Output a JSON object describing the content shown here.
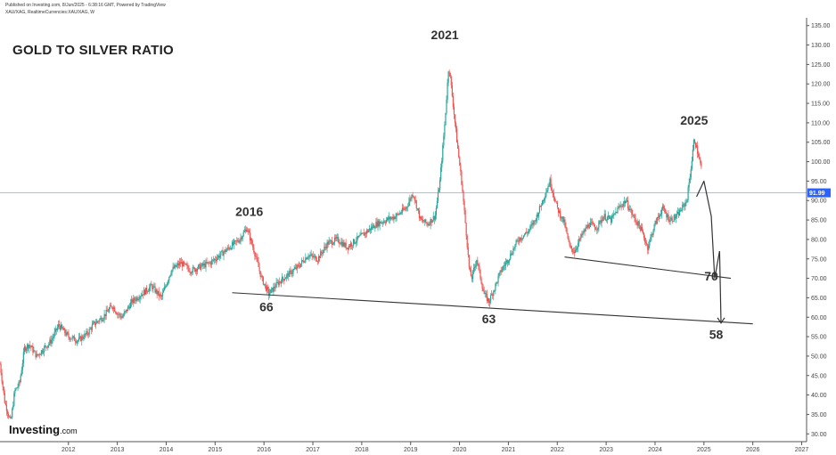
{
  "header": {
    "line1": "Published on Investing.com, 8/Jun/2025 - 6:38:16 GMT, Powered by TradingView",
    "line2": "XAU/XAG, RealtimeCurrencies:XAU/XAG, W"
  },
  "logo": {
    "main": "Investing",
    "suffix": ".com"
  },
  "colors": {
    "up": "#26a69a",
    "down": "#ef5350",
    "price_line": "#b0b6be",
    "price_tag": "#2962ff",
    "trendline": "#333333"
  },
  "chart_data": {
    "type": "line",
    "title": "GOLD TO SILVER RATIO",
    "xlabel": "",
    "ylabel": "",
    "ylim": [
      28,
      137
    ],
    "xlim": [
      2011.1,
      2027.6
    ],
    "x_ticks": [
      "2012",
      "2013",
      "2014",
      "2015",
      "2016",
      "2017",
      "2018",
      "2019",
      "2020",
      "2021",
      "2022",
      "2023",
      "2024",
      "2025",
      "2026",
      "2027"
    ],
    "y_ticks": [
      "30.00",
      "35.00",
      "40.00",
      "45.00",
      "50.00",
      "55.00",
      "60.00",
      "65.00",
      "70.00",
      "75.00",
      "80.00",
      "85.00",
      "90.00",
      "95.00",
      "100.00",
      "105.00",
      "110.00",
      "115.00",
      "120.00",
      "125.00",
      "130.00",
      "135.00"
    ],
    "current_price": "91.99",
    "series": [
      {
        "x": [
          2011.1,
          2011.2,
          2011.32,
          2011.4,
          2011.5,
          2011.6,
          2011.7,
          2011.85,
          2012.0,
          2012.15,
          2012.3,
          2012.5,
          2012.7,
          2012.9,
          2013.0,
          2013.2,
          2013.4,
          2013.5,
          2013.6,
          2013.8,
          2014.0,
          2014.2,
          2014.4,
          2014.6,
          2014.8,
          2015.0,
          2015.2,
          2015.4,
          2015.6,
          2015.8,
          2016.0,
          2016.15,
          2016.3,
          2016.45,
          2016.6,
          2016.8,
          2017.0,
          2017.2,
          2017.4,
          2017.6,
          2017.8,
          2018.0,
          2018.2,
          2018.4,
          2018.6,
          2018.8,
          2019.0,
          2019.2,
          2019.4,
          2019.55,
          2019.7,
          2019.85,
          2020.0,
          2020.1,
          2020.2,
          2020.28,
          2020.35,
          2020.45,
          2020.55,
          2020.65,
          2020.7,
          2020.75,
          2020.85,
          2021.0,
          2021.1,
          2021.2,
          2021.35,
          2021.5,
          2021.7,
          2021.9,
          2022.05,
          2022.2,
          2022.35,
          2022.5,
          2022.65,
          2022.75,
          2022.85,
          2023.0,
          2023.15,
          2023.3,
          2023.45,
          2023.6,
          2023.75,
          2023.9,
          2024.05,
          2024.2,
          2024.35,
          2024.5,
          2024.65,
          2024.8,
          2024.95,
          2025.05,
          2025.15,
          2025.25,
          2025.3,
          2025.38,
          2025.45
        ],
        "values": [
          48,
          38,
          33,
          41,
          43,
          52,
          53,
          50,
          52,
          54,
          58,
          55,
          54,
          56,
          58,
          60,
          63,
          61,
          60,
          64,
          66,
          68,
          65,
          72,
          74,
          72,
          73,
          74,
          76,
          78,
          80,
          83,
          77,
          70,
          66,
          69,
          71,
          73,
          76,
          75,
          79,
          80,
          78,
          80,
          82,
          84,
          85,
          86,
          88,
          92,
          85,
          84,
          86,
          95,
          110,
          125,
          117,
          105,
          94,
          80,
          72,
          70,
          75,
          66,
          64,
          67,
          72,
          75,
          80,
          82,
          85,
          90,
          95,
          88,
          84,
          78,
          77,
          81,
          84,
          83,
          86,
          85,
          88,
          90,
          86,
          83,
          78,
          84,
          88,
          85,
          86,
          88,
          90,
          100,
          106,
          102,
          98
        ]
      }
    ],
    "annotations": [
      {
        "text": "2016",
        "x": 2016.2,
        "y": 86
      },
      {
        "text": "66",
        "x": 2016.55,
        "y": 61.5
      },
      {
        "text": "2021",
        "x": 2020.2,
        "y": 131.5
      },
      {
        "text": "63",
        "x": 2021.1,
        "y": 58.5
      },
      {
        "text": "2025",
        "x": 2025.3,
        "y": 109.5
      },
      {
        "text": "70",
        "x": 2025.65,
        "y": 69.5
      },
      {
        "text": "58",
        "x": 2025.75,
        "y": 54.5
      }
    ],
    "trendlines": [
      {
        "from": [
          2015.85,
          66.3
        ],
        "to": [
          2026.5,
          58.3
        ]
      },
      {
        "from": [
          2022.65,
          75.5
        ],
        "to": [
          2026.05,
          70.0
        ]
      }
    ],
    "projection": {
      "points": [
        [
          2025.35,
          91
        ],
        [
          2025.5,
          95
        ],
        [
          2025.65,
          86
        ],
        [
          2025.72,
          70
        ]
      ],
      "arrow_up": [
        [
          2025.72,
          70
        ],
        [
          2025.82,
          77
        ]
      ],
      "arrow_down": [
        [
          2025.82,
          77
        ],
        [
          2025.85,
          58.5
        ]
      ]
    }
  }
}
